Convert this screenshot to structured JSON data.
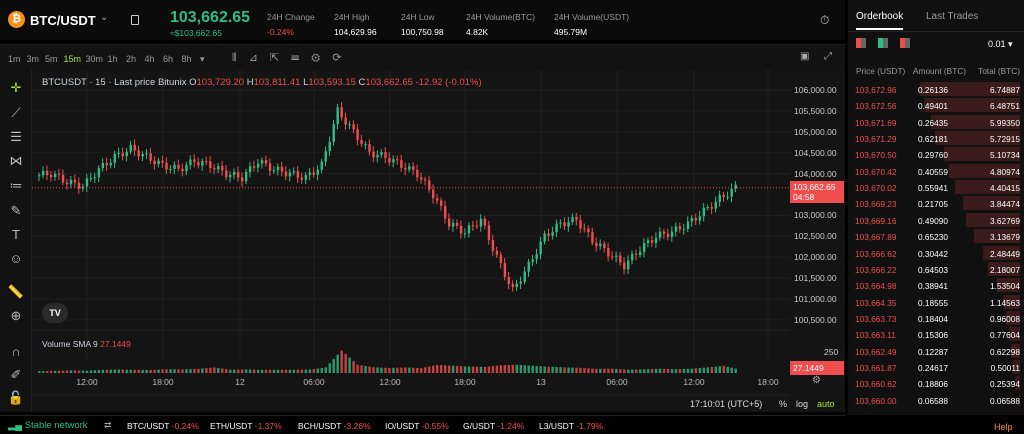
{
  "header": {
    "symbol": "BTC/USDT",
    "logo_letter": "₿",
    "last_price": "103,662.65",
    "usd_price": "≈$103,662.65",
    "stats": [
      {
        "label": "24H Change",
        "value": "-0.24%",
        "color": "#f04e4e"
      },
      {
        "label": "24H High",
        "value": "104,629.96"
      },
      {
        "label": "24H Low",
        "value": "100,750.98"
      },
      {
        "label": "24H Volume(BTC)",
        "value": "4.82K"
      },
      {
        "label": "24H Volume(USDT)",
        "value": "495.79M"
      }
    ]
  },
  "toolbar": {
    "timeframes": [
      "1m",
      "3m",
      "5m",
      "15m",
      "30m",
      "1h",
      "2h",
      "4h",
      "6h",
      "8h"
    ],
    "active": "15m",
    "more": "▾"
  },
  "chart": {
    "title": "BTCUSDT · 15 · Last price Bitunix",
    "o_label": "O",
    "o": "103,729.20",
    "h_label": "H",
    "h": "103,811.41",
    "l_label": "L",
    "l": "103,593.15",
    "c_label": "C",
    "c": "103,662.65",
    "change": "-12.92 (-0.01%)",
    "price_ticks": [
      "106,000.00",
      "105,500.00",
      "105,000.00",
      "104,500.00",
      "104,000.00",
      "103,000.00",
      "102,500.00",
      "102,000.00",
      "101,500.00",
      "101,000.00",
      "100,500.00"
    ],
    "current_price_label": "103,662.65",
    "countdown": "04:58",
    "time_ticks": [
      "12:00",
      "18:00",
      "12",
      "06:00",
      "12:00",
      "18:00",
      "13",
      "06:00",
      "12:00",
      "18:00"
    ],
    "volume_label": "Volume SMA 9",
    "volume_value": "27.1449",
    "volume_tick": "250",
    "clock": "17:10:01 (UTC+5)",
    "percent": "%",
    "log": "log",
    "auto": "auto",
    "logo_text": "TV"
  },
  "chart_data": {
    "type": "candlestick",
    "closes": [
      103950,
      104000,
      103800,
      103700,
      104100,
      104400,
      104600,
      104400,
      104200,
      104100,
      104300,
      104200,
      104000,
      103900,
      104300,
      104100,
      104000,
      103900,
      104200,
      105500,
      105000,
      104500,
      104400,
      104200,
      104000,
      103500,
      102800,
      102600,
      102900,
      102000,
      101200,
      101800,
      102500,
      102800,
      102900,
      102400,
      102100,
      101800,
      102200,
      102500,
      102600,
      102800,
      103100,
      103400,
      103662
    ],
    "volumes": [
      20,
      22,
      25,
      20,
      28,
      30,
      25,
      22,
      30,
      28,
      35,
      50,
      25,
      30,
      26,
      28,
      30,
      35,
      60,
      250,
      90,
      60,
      50,
      55,
      45,
      80,
      70,
      60,
      55,
      75,
      80,
      70,
      60,
      55,
      50,
      40,
      45,
      35,
      40,
      45,
      38,
      42,
      55,
      70,
      30
    ]
  },
  "orderbook": {
    "tabs": [
      "Orderbook",
      "Last Trades"
    ],
    "precision": "0.01",
    "headers": [
      "Price (USDT)",
      "Amount (BTC)",
      "Total (BTC)"
    ],
    "rows": [
      [
        "103,672.96",
        "0.26136",
        "6.74887"
      ],
      [
        "103,672.56",
        "0.49401",
        "6.48751"
      ],
      [
        "103,671.69",
        "0.26435",
        "5.99350"
      ],
      [
        "103,671.29",
        "0.62181",
        "5.72915"
      ],
      [
        "103,670.50",
        "0.29760",
        "5.10734"
      ],
      [
        "103,670.42",
        "0.40559",
        "4.80974"
      ],
      [
        "103,670.02",
        "0.55941",
        "4.40415"
      ],
      [
        "103,669.23",
        "0.21705",
        "3.84474"
      ],
      [
        "103,669.16",
        "0.49090",
        "3.62769"
      ],
      [
        "103,667.89",
        "0.65230",
        "3.13679"
      ],
      [
        "103,666.62",
        "0.30442",
        "2.48449"
      ],
      [
        "103,666.22",
        "0.64503",
        "2.18007"
      ],
      [
        "103,664.98",
        "0.38941",
        "1.53504"
      ],
      [
        "103,664.35",
        "0.18555",
        "1.14563"
      ],
      [
        "103,663.73",
        "0.18404",
        "0.96008"
      ],
      [
        "103,663.11",
        "0.15306",
        "0.77604"
      ],
      [
        "103,662.49",
        "0.12287",
        "0.62298"
      ],
      [
        "103,661.87",
        "0.24617",
        "0.50011"
      ],
      [
        "103,660.62",
        "0.18806",
        "0.25394"
      ],
      [
        "103,660.00",
        "0.06588",
        "0.06588"
      ]
    ],
    "help": "Help"
  },
  "footer": {
    "network": "Stable network",
    "tickers": [
      [
        "BTC/USDT",
        "-0.24%"
      ],
      [
        "ETH/USDT",
        "-1.37%"
      ],
      [
        "BCH/USDT",
        "-3.26%"
      ],
      [
        "IO/USDT",
        "-0.55%"
      ],
      [
        "G/USDT",
        "-1.24%"
      ],
      [
        "L3/USDT",
        "-1.79%"
      ]
    ]
  },
  "colors": {
    "up": "#2ebd85",
    "down": "#f04e4e",
    "accent": "#a3e635"
  }
}
